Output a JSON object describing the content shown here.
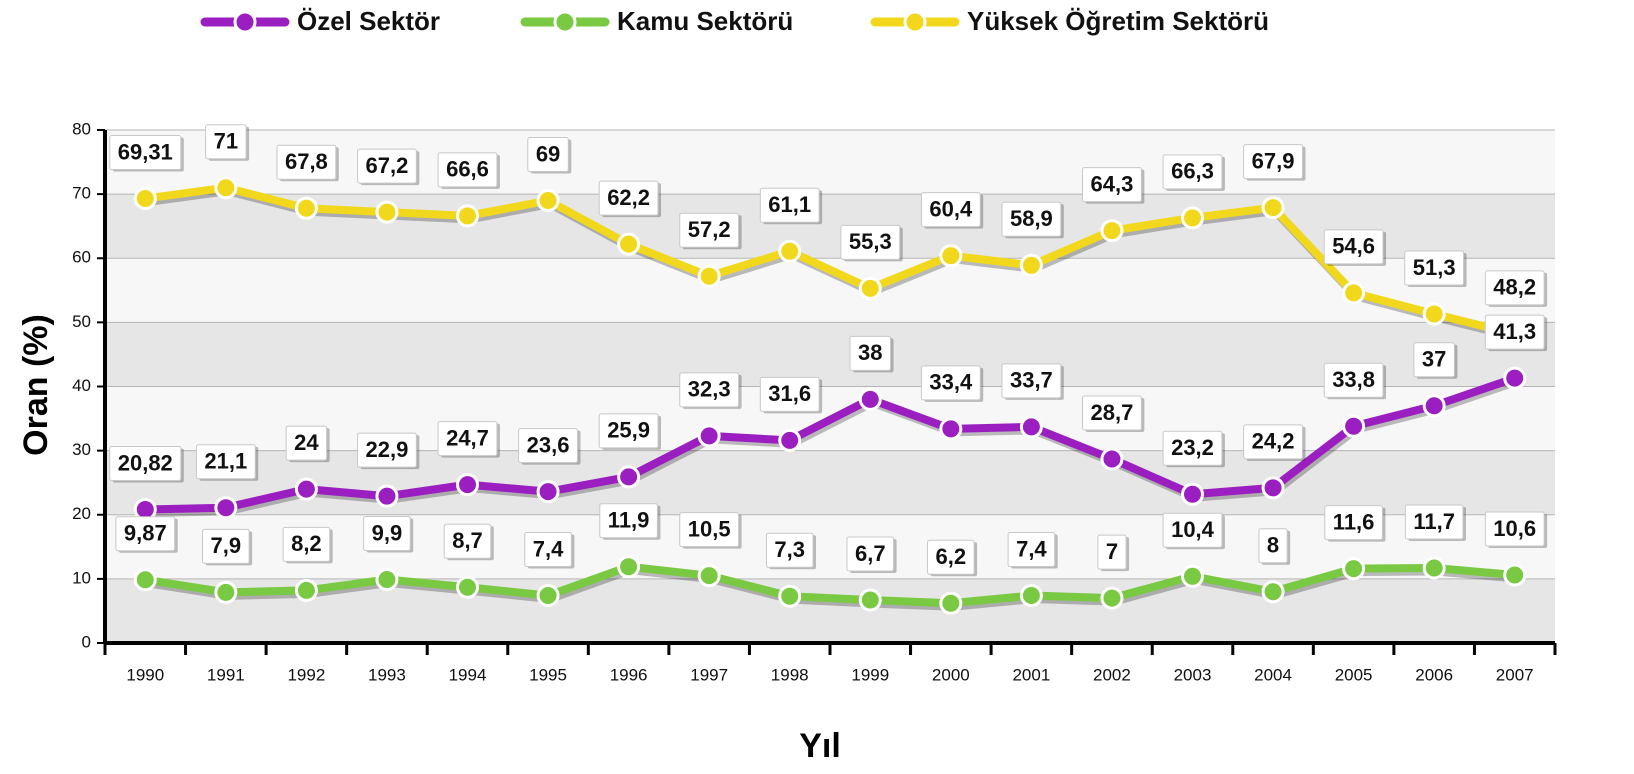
{
  "chart_data": {
    "type": "line",
    "x_label": "Yıl",
    "y_label": "Oran (%)",
    "categories": [
      "1990",
      "1991",
      "1992",
      "1993",
      "1994",
      "1995",
      "1996",
      "1997",
      "1998",
      "1999",
      "2000",
      "2001",
      "2002",
      "2003",
      "2004",
      "2005",
      "2006",
      "2007"
    ],
    "series": [
      {
        "name": "Özel Sektör",
        "color": "#9b1fc0",
        "values": [
          20.82,
          21.1,
          24,
          22.9,
          24.7,
          23.6,
          25.9,
          32.3,
          31.6,
          38,
          33.4,
          33.7,
          28.7,
          23.2,
          24.2,
          33.8,
          37,
          41.3
        ],
        "value_labels": [
          "20,82",
          "21,1",
          "24",
          "22,9",
          "24,7",
          "23,6",
          "25,9",
          "32,3",
          "31,6",
          "38",
          "33,4",
          "33,7",
          "28,7",
          "23,2",
          "24,2",
          "33,8",
          "37",
          "41,3"
        ]
      },
      {
        "name": "Kamu Sektörü",
        "color": "#7ac943",
        "values": [
          9.87,
          7.9,
          8.2,
          9.9,
          8.7,
          7.4,
          11.9,
          10.5,
          7.3,
          6.7,
          6.2,
          7.4,
          7,
          10.4,
          8,
          11.6,
          11.7,
          10.6
        ],
        "value_labels": [
          "9,87",
          "7,9",
          "8,2",
          "9,9",
          "8,7",
          "7,4",
          "11,9",
          "10,5",
          "7,3",
          "6,7",
          "6,2",
          "7,4",
          "7",
          "10,4",
          "8",
          "11,6",
          "11,7",
          "10,6"
        ]
      },
      {
        "name": "Yüksek Öğretim Sektörü",
        "color": "#f2d81c",
        "values": [
          69.31,
          71,
          67.8,
          67.2,
          66.6,
          69,
          62.2,
          57.2,
          61.1,
          55.3,
          60.4,
          58.9,
          64.3,
          66.3,
          67.9,
          54.6,
          51.3,
          48.2
        ],
        "value_labels": [
          "69,31",
          "71",
          "67,8",
          "67,2",
          "66,6",
          "69",
          "62,2",
          "57,2",
          "61,1",
          "55,3",
          "60,4",
          "58,9",
          "64,3",
          "66,3",
          "67,9",
          "54,6",
          "51,3",
          "48,2"
        ]
      }
    ],
    "ylim": [
      0,
      80
    ],
    "yticks": [
      0,
      10,
      20,
      30,
      40,
      50,
      60,
      70,
      80
    ],
    "grid": true,
    "legend": "top"
  }
}
